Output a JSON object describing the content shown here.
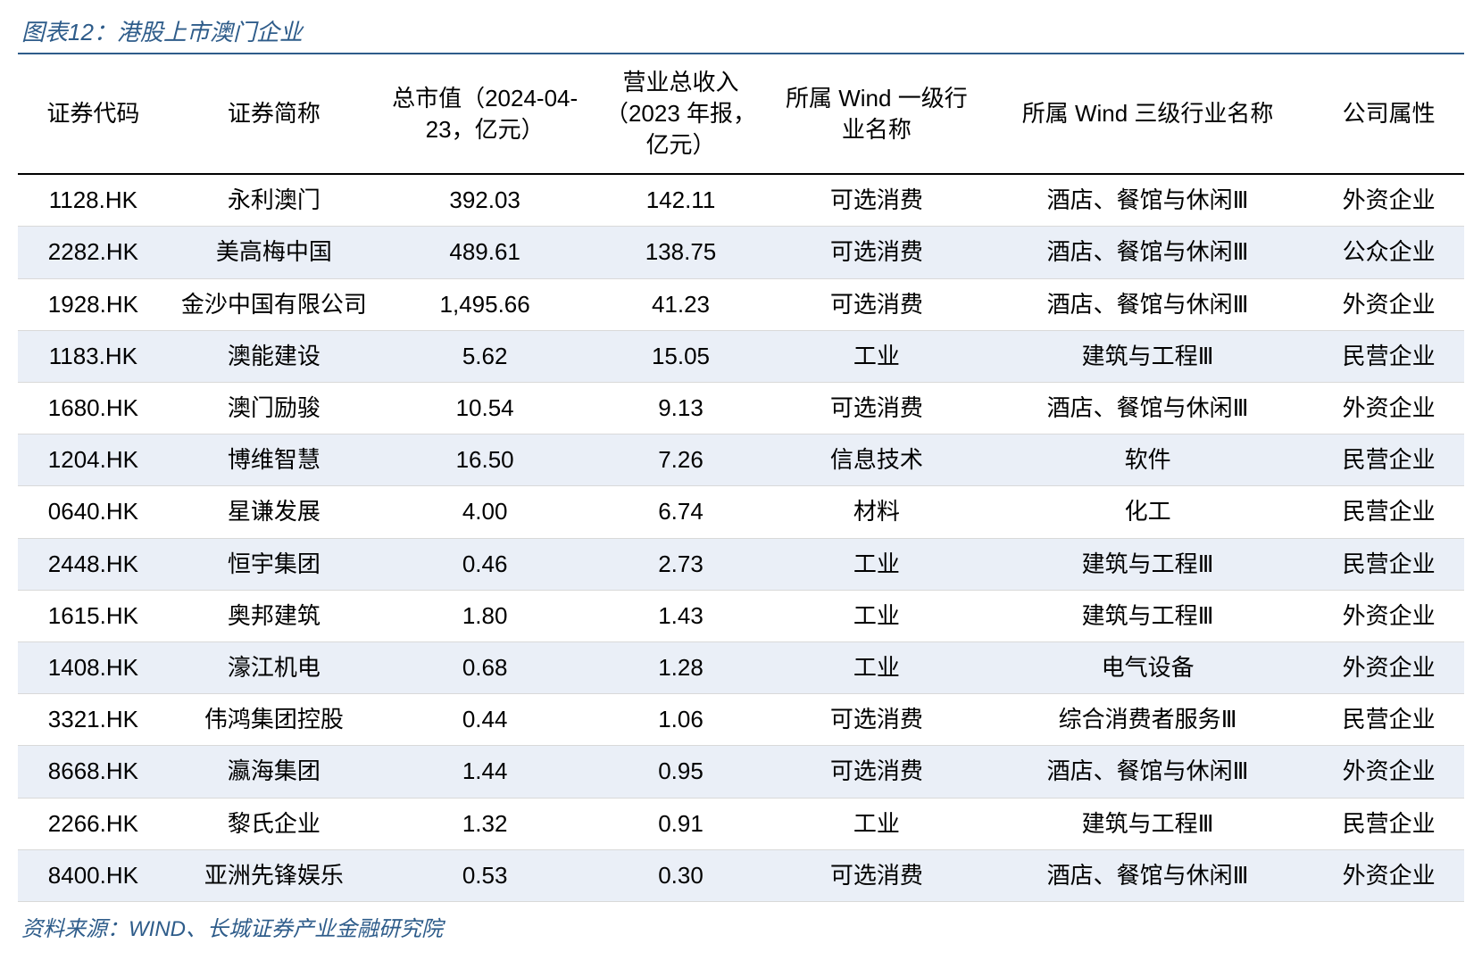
{
  "title": "图表12：港股上市澳门企业",
  "source": "资料来源：WIND、长城证券产业金融研究院",
  "table": {
    "columns": [
      "证券代码",
      "证券简称",
      "总市值（2024-04-23，亿元）",
      "营业总收入（2023 年报，亿元）",
      "所属 Wind 一级行业名称",
      "所属 Wind 三级行业名称",
      "公司属性"
    ],
    "rows": [
      [
        "1128.HK",
        "永利澳门",
        "392.03",
        "142.11",
        "可选消费",
        "酒店、餐馆与休闲Ⅲ",
        "外资企业"
      ],
      [
        "2282.HK",
        "美高梅中国",
        "489.61",
        "138.75",
        "可选消费",
        "酒店、餐馆与休闲Ⅲ",
        "公众企业"
      ],
      [
        "1928.HK",
        "金沙中国有限公司",
        "1,495.66",
        "41.23",
        "可选消费",
        "酒店、餐馆与休闲Ⅲ",
        "外资企业"
      ],
      [
        "1183.HK",
        "澳能建设",
        "5.62",
        "15.05",
        "工业",
        "建筑与工程Ⅲ",
        "民营企业"
      ],
      [
        "1680.HK",
        "澳门励骏",
        "10.54",
        "9.13",
        "可选消费",
        "酒店、餐馆与休闲Ⅲ",
        "外资企业"
      ],
      [
        "1204.HK",
        "博维智慧",
        "16.50",
        "7.26",
        "信息技术",
        "软件",
        "民营企业"
      ],
      [
        "0640.HK",
        "星谦发展",
        "4.00",
        "6.74",
        "材料",
        "化工",
        "民营企业"
      ],
      [
        "2448.HK",
        "恒宇集团",
        "0.46",
        "2.73",
        "工业",
        "建筑与工程Ⅲ",
        "民营企业"
      ],
      [
        "1615.HK",
        "奥邦建筑",
        "1.80",
        "1.43",
        "工业",
        "建筑与工程Ⅲ",
        "外资企业"
      ],
      [
        "1408.HK",
        "濠江机电",
        "0.68",
        "1.28",
        "工业",
        "电气设备",
        "外资企业"
      ],
      [
        "3321.HK",
        "伟鸿集团控股",
        "0.44",
        "1.06",
        "可选消费",
        "综合消费者服务Ⅲ",
        "民营企业"
      ],
      [
        "8668.HK",
        "瀛海集团",
        "1.44",
        "0.95",
        "可选消费",
        "酒店、餐馆与休闲Ⅲ",
        "外资企业"
      ],
      [
        "2266.HK",
        "黎氏企业",
        "1.32",
        "0.91",
        "工业",
        "建筑与工程Ⅲ",
        "民营企业"
      ],
      [
        "8400.HK",
        "亚洲先锋娱乐",
        "0.53",
        "0.30",
        "可选消费",
        "酒店、餐馆与休闲Ⅲ",
        "外资企业"
      ]
    ],
    "alt_row_bg": "#eaeff7",
    "header_border_color": "#000000",
    "row_border_color": "#d9d9d9",
    "title_color": "#2e5c8a",
    "source_color": "#2e5c8a",
    "background_color": "#ffffff",
    "font_size_header": 26,
    "font_size_cell": 26
  }
}
